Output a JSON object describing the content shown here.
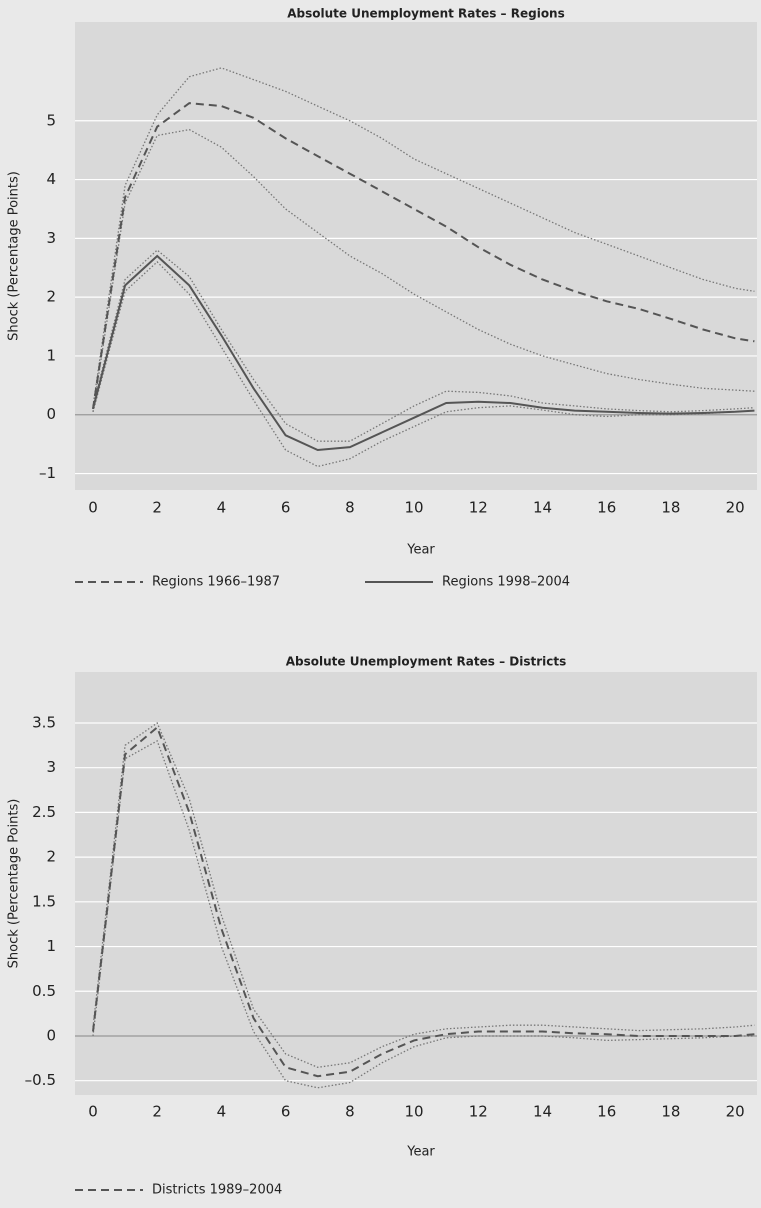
{
  "chart_data": [
    {
      "type": "line",
      "title": "Absolute Unemployment Rates – Regions",
      "xlabel": "Year",
      "ylabel": "Shock (Percentage Points)",
      "x": [
        0,
        1,
        2,
        3,
        4,
        5,
        6,
        7,
        8,
        9,
        10,
        11,
        12,
        13,
        14,
        15,
        16,
        17,
        18,
        19,
        20,
        20.6
      ],
      "xlim": [
        -0.56,
        20.68
      ],
      "xticks": [
        0,
        2,
        4,
        6,
        8,
        10,
        12,
        14,
        16,
        18,
        20
      ],
      "ylim": [
        -1.28,
        6.68
      ],
      "yticks": [
        {
          "value": -1,
          "label": "–1"
        },
        0,
        1,
        2,
        3,
        4,
        5
      ],
      "grid": true,
      "legend": "bottom",
      "series": [
        {
          "name": "Regions 1966–1987",
          "color": "#555555",
          "style": "dashed",
          "values": [
            0.1,
            3.7,
            4.9,
            5.3,
            5.25,
            5.05,
            4.7,
            4.4,
            4.1,
            3.8,
            3.5,
            3.2,
            2.85,
            2.55,
            2.3,
            2.1,
            1.93,
            1.8,
            1.63,
            1.45,
            1.3,
            1.25
          ]
        },
        {
          "color": "#777777",
          "style": "dotted",
          "values": [
            0.15,
            3.9,
            5.1,
            5.75,
            5.9,
            5.7,
            5.5,
            5.25,
            5.0,
            4.7,
            4.35,
            4.1,
            3.85,
            3.6,
            3.35,
            3.1,
            2.9,
            2.7,
            2.5,
            2.3,
            2.15,
            2.1
          ]
        },
        {
          "color": "#777777",
          "style": "dotted",
          "values": [
            0.05,
            3.6,
            4.75,
            4.85,
            4.55,
            4.05,
            3.5,
            3.1,
            2.7,
            2.4,
            2.05,
            1.75,
            1.45,
            1.2,
            1.0,
            0.85,
            0.7,
            0.6,
            0.52,
            0.45,
            0.42,
            0.4
          ]
        },
        {
          "name": "Regions 1998–2004",
          "color": "#555555",
          "style": "solid",
          "values": [
            0.1,
            2.2,
            2.7,
            2.2,
            1.35,
            0.45,
            -0.35,
            -0.6,
            -0.55,
            -0.3,
            -0.05,
            0.2,
            0.22,
            0.2,
            0.12,
            0.07,
            0.05,
            0.03,
            0.02,
            0.03,
            0.05,
            0.07
          ]
        },
        {
          "color": "#777777",
          "style": "dotted",
          "values": [
            0.15,
            2.3,
            2.8,
            2.35,
            1.45,
            0.6,
            -0.15,
            -0.45,
            -0.45,
            -0.15,
            0.15,
            0.4,
            0.38,
            0.32,
            0.2,
            0.15,
            0.1,
            0.07,
            0.05,
            0.07,
            0.1,
            0.12
          ]
        },
        {
          "color": "#777777",
          "style": "dotted",
          "values": [
            0.05,
            2.1,
            2.6,
            2.05,
            1.15,
            0.25,
            -0.6,
            -0.88,
            -0.75,
            -0.45,
            -0.2,
            0.05,
            0.12,
            0.15,
            0.08,
            0.0,
            -0.03,
            0.0,
            0.0,
            0.02,
            0.05,
            0.07
          ]
        }
      ]
    },
    {
      "type": "line",
      "title": "Absolute Unemployment Rates – Districts",
      "xlabel": "Year",
      "ylabel": "Shock (Percentage Points)",
      "x": [
        0,
        1,
        2,
        3,
        4,
        5,
        6,
        7,
        8,
        9,
        10,
        11,
        12,
        13,
        14,
        15,
        16,
        17,
        18,
        19,
        20,
        20.6
      ],
      "xlim": [
        -0.56,
        20.68
      ],
      "xticks": [
        0,
        2,
        4,
        6,
        8,
        10,
        12,
        14,
        16,
        18,
        20
      ],
      "ylim": [
        -0.66,
        4.07
      ],
      "yticks": [
        {
          "value": -0.5,
          "label": "–0.5"
        },
        0,
        0.5,
        1,
        1.5,
        2,
        2.5,
        3,
        3.5
      ],
      "grid": true,
      "legend": "bottom",
      "series": [
        {
          "name": "Districts 1989–2004",
          "color": "#555555",
          "style": "dashed",
          "values": [
            0.05,
            3.15,
            3.45,
            2.5,
            1.2,
            0.2,
            -0.35,
            -0.45,
            -0.4,
            -0.2,
            -0.05,
            0.02,
            0.05,
            0.05,
            0.05,
            0.03,
            0.02,
            0.0,
            0.0,
            0.0,
            0.0,
            0.02
          ]
        },
        {
          "color": "#777777",
          "style": "dotted",
          "values": [
            0.1,
            3.25,
            3.5,
            2.65,
            1.35,
            0.3,
            -0.2,
            -0.35,
            -0.3,
            -0.12,
            0.02,
            0.08,
            0.1,
            0.12,
            0.12,
            0.1,
            0.08,
            0.06,
            0.07,
            0.08,
            0.1,
            0.12
          ]
        },
        {
          "color": "#777777",
          "style": "dotted",
          "values": [
            0.0,
            3.1,
            3.3,
            2.3,
            1.0,
            0.05,
            -0.5,
            -0.58,
            -0.52,
            -0.3,
            -0.12,
            -0.02,
            0.0,
            0.0,
            0.0,
            -0.02,
            -0.05,
            -0.04,
            -0.03,
            -0.02,
            0.0,
            0.0
          ]
        }
      ]
    }
  ]
}
